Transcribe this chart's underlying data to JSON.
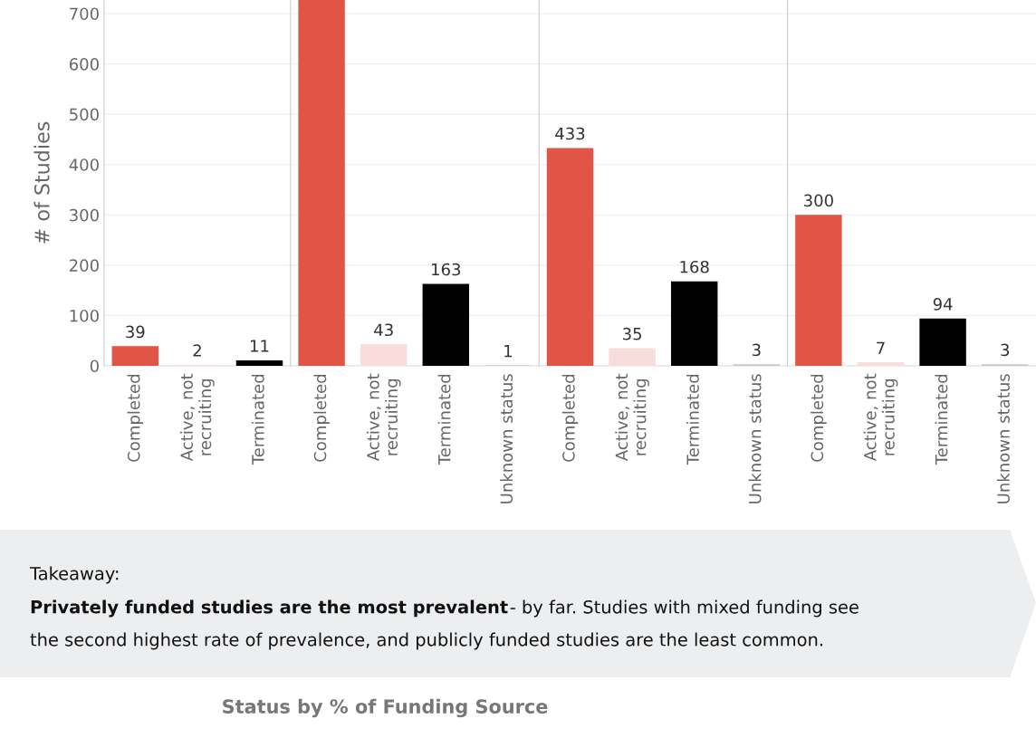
{
  "chart_data": [
    {
      "type": "bar",
      "categories": [
        "Completed",
        "Active, not\nrecruiting",
        "Terminated"
      ],
      "values": [
        39,
        2,
        11
      ],
      "colors": [
        "#e15546",
        "#f9dcdc",
        "#000000"
      ],
      "data_labels": true,
      "ylim": [
        0,
        727
      ],
      "yticks": [
        0,
        100,
        200,
        300,
        400,
        500,
        600,
        700
      ],
      "ylabel": "# of Studies",
      "grid": "y",
      "title": "Status by % of Funding Source",
      "annotations": [
        "Takeaway:",
        "Privately funded studies are the most prevalent",
        "- by far. Studies with mixed funding see",
        "the second highest rate of prevalence, and publicly funded studies are the least common."
      ]
    },
    {
      "type": "bar",
      "categories": [
        "Completed",
        "Active, not\nrecruiting",
        "Terminated",
        "Unknown status"
      ],
      "values": [
        727,
        43,
        163,
        1
      ],
      "colors": [
        "#e15546",
        "#f9dcdc",
        "#000000",
        "#c8c8c8"
      ],
      "value_labels": [
        null,
        "43",
        "163",
        "1"
      ],
      "ylim": [
        0,
        727
      ],
      "yticks": [
        0,
        100,
        200,
        300,
        400,
        500,
        600,
        700
      ],
      "grid": "y",
      "tick_labels": "x"
    },
    {
      "type": "bar",
      "categories": [
        "Completed",
        "Active, not\nrecruiting",
        "Terminated",
        "Unknown status"
      ],
      "values": [
        433,
        35,
        168,
        3
      ],
      "colors": [
        "#e15546",
        "#f9dcdc",
        "#000000",
        "#c8c8c8"
      ],
      "data_labels": true,
      "ylim": [
        0,
        727
      ],
      "yticks": [
        0,
        100,
        200,
        300,
        400,
        500,
        600,
        700
      ],
      "grid": "y",
      "tick_labels": "x"
    },
    {
      "type": "bar",
      "categories": [
        "Completed",
        "Active, not\nrecruiting",
        "Terminated",
        "Unknown status"
      ],
      "values": [
        300,
        7,
        94,
        3
      ],
      "colors": [
        "#e15546",
        "#f9dcdc",
        "#000000",
        "#c8c8c8"
      ],
      "data_labels": true,
      "ylim": [
        0,
        727
      ],
      "yticks": [
        0,
        100,
        200,
        300,
        400,
        500,
        600,
        700
      ],
      "grid": "y",
      "tick_labels": "x"
    }
  ]
}
